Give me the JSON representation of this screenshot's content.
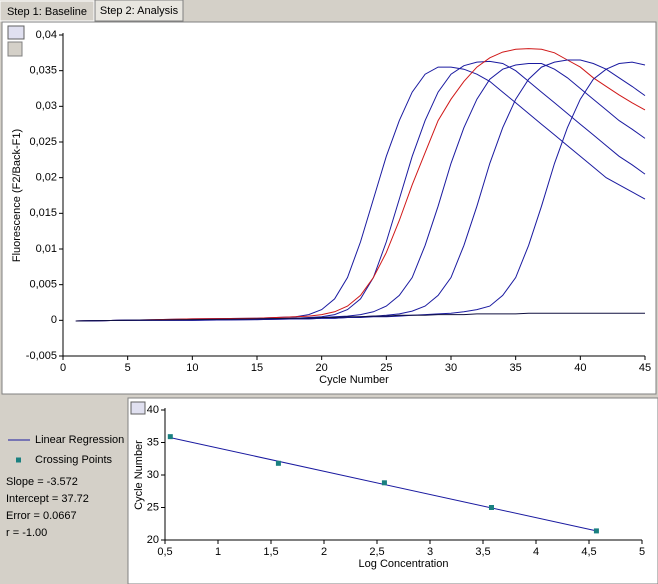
{
  "tabs": [
    "Step 1: Baseline",
    "Step 2: Analysis"
  ],
  "stats": [
    "Slope = -3.572",
    "Intercept = 37.72",
    "Error = 0.0667",
    "r = -1.00"
  ],
  "chart_data": [
    {
      "type": "line",
      "x_label": "Cycle Number",
      "y_label": "Fluorescence (F2/Back-F1)",
      "x": [
        1,
        5,
        10,
        15,
        18,
        19,
        20,
        21,
        22,
        23,
        24,
        25,
        26,
        27,
        28,
        29,
        30,
        31,
        32,
        33,
        34,
        35,
        36,
        37,
        38,
        39,
        40,
        41,
        42,
        43,
        44,
        45
      ],
      "xlim": [
        0,
        45
      ],
      "xticks": [
        0,
        5,
        10,
        15,
        20,
        25,
        30,
        35,
        40,
        45
      ],
      "ylim": [
        -0.005,
        0.04
      ],
      "yticks": [
        {
          "value": -0.005,
          "label": "-0,005"
        },
        0,
        {
          "value": 0.005,
          "label": "0,005"
        },
        {
          "value": 0.01,
          "label": "0,01"
        },
        {
          "value": 0.015,
          "label": "0,015"
        },
        {
          "value": 0.02,
          "label": "0,02"
        },
        {
          "value": 0.025,
          "label": "0,025"
        },
        {
          "value": 0.03,
          "label": "0,03"
        },
        {
          "value": 0.035,
          "label": "0,035"
        },
        {
          "value": 0.04,
          "label": "0,04"
        }
      ],
      "series": [
        {
          "color": "#1a1aa0",
          "values": [
            -0.0001,
            0,
            0.0002,
            0.0003,
            0.0005,
            0.0008,
            0.0015,
            0.003,
            0.006,
            0.011,
            0.017,
            0.023,
            0.028,
            0.032,
            0.0345,
            0.0355,
            0.0355,
            0.0352,
            0.0345,
            0.0335,
            0.032,
            0.0305,
            0.029,
            0.0275,
            0.026,
            0.0245,
            0.023,
            0.0215,
            0.02,
            0.019,
            0.018,
            0.017
          ]
        },
        {
          "color": "#1a1aa0",
          "values": [
            -0.0001,
            0,
            0.0001,
            0.0002,
            0.0003,
            0.0004,
            0.0005,
            0.0008,
            0.0015,
            0.003,
            0.006,
            0.011,
            0.017,
            0.023,
            0.028,
            0.032,
            0.0345,
            0.0357,
            0.0362,
            0.0363,
            0.036,
            0.035,
            0.0335,
            0.032,
            0.0305,
            0.029,
            0.0275,
            0.026,
            0.0245,
            0.023,
            0.0218,
            0.0205
          ]
        },
        {
          "color": "#d01818",
          "values": [
            -0.0001,
            0,
            0.0002,
            0.0003,
            0.0005,
            0.0006,
            0.0008,
            0.0012,
            0.002,
            0.0035,
            0.006,
            0.0095,
            0.014,
            0.019,
            0.0235,
            0.028,
            0.031,
            0.0335,
            0.0355,
            0.0368,
            0.0376,
            0.038,
            0.0381,
            0.038,
            0.0375,
            0.0365,
            0.0355,
            0.034,
            0.0328,
            0.0316,
            0.0305,
            0.0295
          ]
        },
        {
          "color": "#1a1aa0",
          "values": [
            -0.0001,
            0,
            0,
            0.0002,
            0.0003,
            0.0003,
            0.0004,
            0.0005,
            0.0006,
            0.0008,
            0.0012,
            0.002,
            0.0035,
            0.006,
            0.0105,
            0.016,
            0.022,
            0.027,
            0.031,
            0.0338,
            0.0352,
            0.0358,
            0.036,
            0.036,
            0.0352,
            0.034,
            0.0325,
            0.031,
            0.0295,
            0.028,
            0.0268,
            0.0255
          ]
        },
        {
          "color": "#1a1aa0",
          "values": [
            -0.0001,
            0,
            0,
            0.0001,
            0.0002,
            0.0002,
            0.0003,
            0.0003,
            0.0004,
            0.0005,
            0.0006,
            0.0007,
            0.0009,
            0.0013,
            0.002,
            0.0035,
            0.006,
            0.0105,
            0.016,
            0.022,
            0.027,
            0.031,
            0.0338,
            0.0355,
            0.0362,
            0.0365,
            0.0365,
            0.036,
            0.0352,
            0.034,
            0.0328,
            0.0315
          ]
        },
        {
          "color": "#1a1aa0",
          "values": [
            -0.0001,
            0,
            0,
            0.0001,
            0.0002,
            0.0002,
            0.0003,
            0.0003,
            0.0004,
            0.0004,
            0.0005,
            0.0005,
            0.0006,
            0.0007,
            0.0008,
            0.0009,
            0.001,
            0.0012,
            0.0015,
            0.002,
            0.0035,
            0.006,
            0.0105,
            0.016,
            0.022,
            0.027,
            0.031,
            0.0338,
            0.0352,
            0.036,
            0.0362,
            0.0358
          ]
        },
        {
          "color": "#101040",
          "values": [
            -0.0001,
            0,
            0.0001,
            0.0002,
            0.0003,
            0.0003,
            0.0004,
            0.0004,
            0.0005,
            0.0005,
            0.0006,
            0.0006,
            0.0007,
            0.0007,
            0.0007,
            0.0008,
            0.0008,
            0.0008,
            0.0009,
            0.0009,
            0.0009,
            0.0009,
            0.001,
            0.001,
            0.001,
            0.001,
            0.001,
            0.001,
            0.001,
            0.001,
            0.001,
            0.001
          ]
        }
      ]
    },
    {
      "type": "scatter",
      "x_label": "Log Concentration",
      "y_label": "Cycle Number",
      "xlim": [
        0.5,
        5
      ],
      "xticks": [
        {
          "value": 0.5,
          "label": "0,5"
        },
        1,
        {
          "value": 1.5,
          "label": "1,5"
        },
        2,
        {
          "value": 2.5,
          "label": "2,5"
        },
        3,
        {
          "value": 3.5,
          "label": "3,5"
        },
        4,
        {
          "value": 4.5,
          "label": "4,5"
        },
        5
      ],
      "ylim": [
        20,
        40
      ],
      "yticks": [
        20,
        25,
        30,
        35,
        40
      ],
      "series": [
        {
          "name": "Linear Regression",
          "type": "line",
          "color": "#1a1aa0",
          "x": [
            0.55,
            4.57
          ],
          "values": [
            35.76,
            21.4
          ]
        },
        {
          "name": "Crossing Points",
          "type": "scatter",
          "color": "#1a8080",
          "x": [
            0.55,
            1.57,
            2.57,
            3.58,
            4.57
          ],
          "values": [
            35.9,
            31.8,
            28.8,
            25.0,
            21.4
          ]
        }
      ]
    }
  ]
}
